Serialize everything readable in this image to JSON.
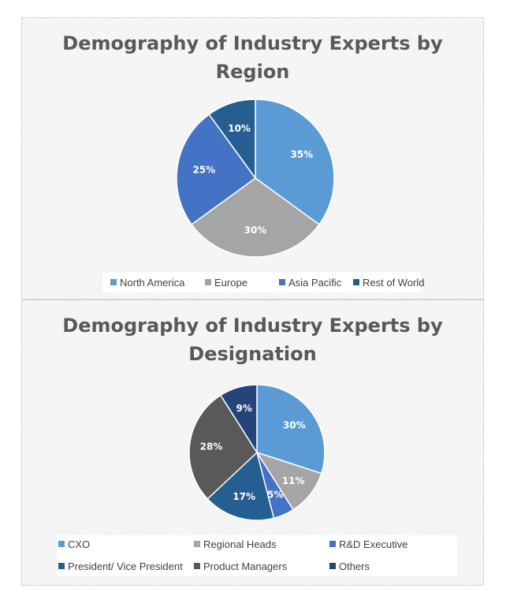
{
  "chart_data": [
    {
      "type": "pie",
      "title": "Demography of Industry Experts by Region",
      "categories": [
        "North America",
        "Europe",
        "Asia Pacific",
        "Rest of World"
      ],
      "values": [
        35,
        30,
        25,
        10
      ],
      "labels": [
        "35%",
        "30%",
        "25%",
        "10%"
      ],
      "colors": [
        "#5b9bd5",
        "#a5a5a5",
        "#4472c4",
        "#255e91"
      ],
      "legend": "bottom"
    },
    {
      "type": "pie",
      "title": "Demography of Industry Experts by Designation",
      "categories": [
        "CXO",
        "Regional Heads",
        "R&D Executive",
        "President/ Vice President",
        "Product Managers",
        "Others"
      ],
      "values": [
        30,
        11,
        5,
        17,
        28,
        9
      ],
      "labels": [
        "30%",
        "11%",
        "5%",
        "17%",
        "28%",
        "9%"
      ],
      "colors": [
        "#5b9bd5",
        "#a5a5a5",
        "#4472c4",
        "#255e91",
        "#595959",
        "#264478"
      ],
      "legend": "bottom"
    }
  ]
}
